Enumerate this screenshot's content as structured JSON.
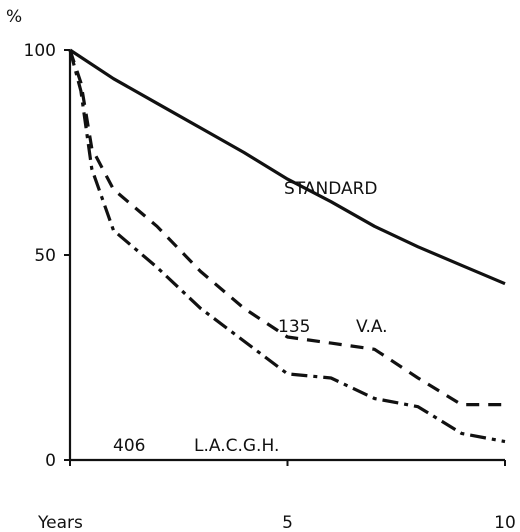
{
  "chart_data": {
    "type": "line",
    "ylabel": "%",
    "xlabel": "Years",
    "xlim": [
      0,
      10
    ],
    "ylim": [
      0,
      100
    ],
    "x_ticks": [
      "5",
      "10"
    ],
    "y_ticks": [
      "0",
      "50",
      "100"
    ],
    "grid": false,
    "series": [
      {
        "name": "STANDARD",
        "style": "solid",
        "x": [
          0,
          1,
          2,
          3,
          4,
          5,
          6,
          7,
          8,
          9,
          10
        ],
        "y": [
          100,
          93,
          87,
          81,
          75,
          68.5,
          63,
          57,
          52,
          47.5,
          43
        ]
      },
      {
        "name": "V.A.",
        "count_label": "135",
        "style": "dashed",
        "x": [
          0,
          0.25,
          0.5,
          1,
          2,
          3,
          4,
          5,
          6,
          7,
          8,
          9,
          10
        ],
        "y": [
          100,
          92,
          76,
          66,
          57,
          46,
          37,
          30,
          28.5,
          27,
          20,
          13.5,
          13.5
        ]
      },
      {
        "name": "L.A.C.G.H.",
        "count_label": "406",
        "style": "dashdot",
        "x": [
          0,
          0.25,
          0.5,
          1,
          2,
          3,
          4,
          5,
          6,
          7,
          8,
          9,
          10
        ],
        "y": [
          100,
          90,
          71,
          56,
          47,
          37,
          29,
          21,
          20,
          15,
          13,
          6.5,
          4.5
        ]
      }
    ]
  }
}
